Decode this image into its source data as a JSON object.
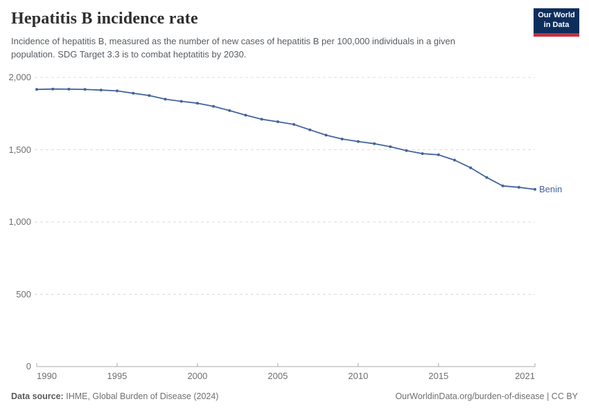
{
  "header": {
    "title": "Hepatitis B incidence rate",
    "subtitle": "Incidence of hepatitis B, measured as the number of new cases of hepatitis B per 100,000 individuals in a given population. SDG Target 3.3 is to combat heptatitis by 2030.",
    "logo": {
      "line1": "Our World",
      "line2": "in Data",
      "bg_color": "#0d2e5c",
      "stripe_color": "#c5303e"
    }
  },
  "chart_data": {
    "type": "line",
    "title": "Hepatitis B incidence rate",
    "xlabel": "",
    "ylabel": "",
    "xlim": [
      1990,
      2021
    ],
    "ylim": [
      0,
      2000
    ],
    "grid": "horizontal-dashed",
    "legend_position": "end-of-line-label",
    "line_color": "#41639d",
    "grid_color": "#dcdcdc",
    "axis_color": "#a8a8a8",
    "tick_label_color": "#6e6e6e",
    "x": [
      1990,
      1991,
      1992,
      1993,
      1994,
      1995,
      1996,
      1997,
      1998,
      1999,
      2000,
      2001,
      2002,
      2003,
      2004,
      2005,
      2006,
      2007,
      2008,
      2009,
      2010,
      2011,
      2012,
      2013,
      2014,
      2015,
      2016,
      2017,
      2018,
      2019,
      2020,
      2021
    ],
    "series": [
      {
        "name": "Benin",
        "color": "#41639d",
        "values": [
          1917,
          1920,
          1919,
          1917,
          1913,
          1907,
          1891,
          1875,
          1850,
          1835,
          1822,
          1800,
          1771,
          1739,
          1711,
          1694,
          1675,
          1638,
          1601,
          1574,
          1557,
          1542,
          1521,
          1494,
          1473,
          1465,
          1428,
          1375,
          1308,
          1250,
          1240,
          1226
        ]
      }
    ],
    "y_ticks": [
      {
        "value": 0,
        "label": "0"
      },
      {
        "value": 500,
        "label": "500"
      },
      {
        "value": 1000,
        "label": "1,000"
      },
      {
        "value": 1500,
        "label": "1,500"
      },
      {
        "value": 2000,
        "label": "2,000"
      }
    ],
    "x_ticks": [
      {
        "value": 1990,
        "label": "1990"
      },
      {
        "value": 1995,
        "label": "1995"
      },
      {
        "value": 2000,
        "label": "2000"
      },
      {
        "value": 2005,
        "label": "2005"
      },
      {
        "value": 2010,
        "label": "2010"
      },
      {
        "value": 2015,
        "label": "2015"
      },
      {
        "value": 2021,
        "label": "2021"
      }
    ],
    "end_label": "Benin"
  },
  "footer": {
    "source_label": "Data source:",
    "source_value": "IHME, Global Burden of Disease (2024)",
    "credit": "OurWorldinData.org/burden-of-disease | CC BY"
  }
}
